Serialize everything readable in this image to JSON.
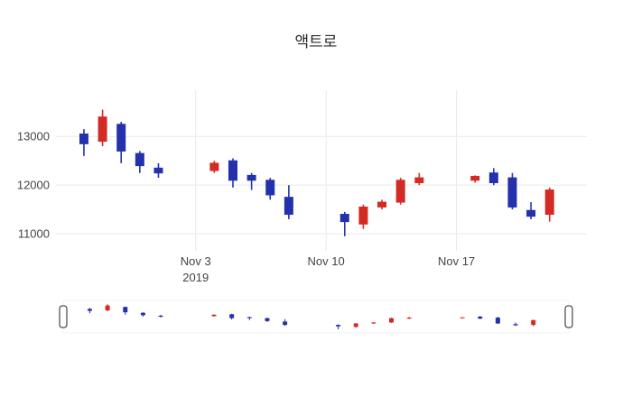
{
  "title": "액트로",
  "colors": {
    "increasing": "#d42a24",
    "decreasing": "#2431ad",
    "grid": "#e9e9e9",
    "axis_text": "#444444",
    "title_text": "#2a2a2a",
    "handle_border": "#555555",
    "background": "#ffffff"
  },
  "chart_data": {
    "type": "candlestick",
    "title": "액트로",
    "ylim": [
      10650,
      13950
    ],
    "y_ticks": [
      11000,
      12000,
      13000
    ],
    "x_ticks": [
      {
        "t": 6,
        "label": "Nov 3",
        "sublabel": "2019"
      },
      {
        "t": 13,
        "label": "Nov 10",
        "sublabel": ""
      },
      {
        "t": 20,
        "label": "Nov 17",
        "sublabel": ""
      }
    ],
    "legend": "none",
    "grid": true,
    "rangeslider": true,
    "candles": [
      {
        "t": 0,
        "date": "2019-10-28",
        "open": 13050,
        "high": 13150,
        "low": 12600,
        "close": 12850
      },
      {
        "t": 1,
        "date": "2019-10-29",
        "open": 12900,
        "high": 13550,
        "low": 12800,
        "close": 13400
      },
      {
        "t": 2,
        "date": "2019-10-30",
        "open": 13250,
        "high": 13300,
        "low": 12450,
        "close": 12700
      },
      {
        "t": 3,
        "date": "2019-10-31",
        "open": 12650,
        "high": 12700,
        "low": 12250,
        "close": 12400
      },
      {
        "t": 4,
        "date": "2019-11-01",
        "open": 12350,
        "high": 12450,
        "low": 12150,
        "close": 12250
      },
      {
        "t": 7,
        "date": "2019-11-04",
        "open": 12300,
        "high": 12500,
        "low": 12250,
        "close": 12450
      },
      {
        "t": 8,
        "date": "2019-11-05",
        "open": 12500,
        "high": 12550,
        "low": 11950,
        "close": 12100
      },
      {
        "t": 9,
        "date": "2019-11-06",
        "open": 12200,
        "high": 12250,
        "low": 11900,
        "close": 12100
      },
      {
        "t": 10,
        "date": "2019-11-07",
        "open": 12100,
        "high": 12150,
        "low": 11700,
        "close": 11800
      },
      {
        "t": 11,
        "date": "2019-11-08",
        "open": 11750,
        "high": 12000,
        "low": 11300,
        "close": 11400
      },
      {
        "t": 14,
        "date": "2019-11-11",
        "open": 11400,
        "high": 11450,
        "low": 10950,
        "close": 11250
      },
      {
        "t": 15,
        "date": "2019-11-12",
        "open": 11200,
        "high": 11600,
        "low": 11100,
        "close": 11550
      },
      {
        "t": 16,
        "date": "2019-11-13",
        "open": 11550,
        "high": 11700,
        "low": 11500,
        "close": 11650
      },
      {
        "t": 17,
        "date": "2019-11-14",
        "open": 11650,
        "high": 12150,
        "low": 11600,
        "close": 12100
      },
      {
        "t": 18,
        "date": "2019-11-15",
        "open": 12050,
        "high": 12250,
        "low": 12000,
        "close": 12150
      },
      {
        "t": 21,
        "date": "2019-11-18",
        "open": 12100,
        "high": 12200,
        "low": 12050,
        "close": 12180
      },
      {
        "t": 22,
        "date": "2019-11-19",
        "open": 12250,
        "high": 12350,
        "low": 12000,
        "close": 12050
      },
      {
        "t": 23,
        "date": "2019-11-20",
        "open": 12150,
        "high": 12250,
        "low": 11500,
        "close": 11550
      },
      {
        "t": 24,
        "date": "2019-11-21",
        "open": 11480,
        "high": 11650,
        "low": 11300,
        "close": 11360
      },
      {
        "t": 25,
        "date": "2019-11-22",
        "open": 11400,
        "high": 11950,
        "low": 11250,
        "close": 11900
      }
    ]
  }
}
